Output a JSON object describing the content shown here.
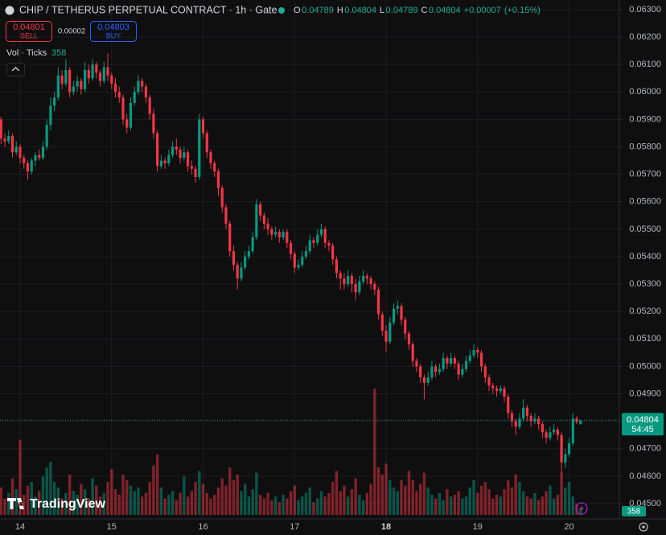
{
  "chart_data": {
    "type": "candlestick",
    "title": "CHIP / TETHERUS PERPETUAL CONTRACT · 1h · Gate",
    "ohlc_letters": [
      "O",
      "H",
      "L",
      "C"
    ],
    "change": "+0.00007",
    "change_pct": "(+0.15%)",
    "sell_price": "0.04801",
    "sell_label": "SELL",
    "spread": "0.00002",
    "buy_price": "0.04803",
    "buy_label": "BUY",
    "volume_title": "Vol · Ticks",
    "countdown": "54:45",
    "brand": "TradingView",
    "up_color": "#089981",
    "down_color": "#f23645",
    "grid": true,
    "ylim": [
      0.04459,
      0.06335
    ],
    "yticks": [
      {
        "value": 0.045,
        "label": "0.04500"
      },
      {
        "value": 0.046,
        "label": "0.04600"
      },
      {
        "value": 0.047,
        "label": "0.04700"
      },
      {
        "value": 0.048,
        "label": "0.04800"
      },
      {
        "value": 0.049,
        "label": "0.04900"
      },
      {
        "value": 0.05,
        "label": "0.05000"
      },
      {
        "value": 0.051,
        "label": "0.05100"
      },
      {
        "value": 0.052,
        "label": "0.05200"
      },
      {
        "value": 0.053,
        "label": "0.05300"
      },
      {
        "value": 0.054,
        "label": "0.05400"
      },
      {
        "value": 0.055,
        "label": "0.05500"
      },
      {
        "value": 0.056,
        "label": "0.05600"
      },
      {
        "value": 0.057,
        "label": "0.05700"
      },
      {
        "value": 0.058,
        "label": "0.05800"
      },
      {
        "value": 0.059,
        "label": "0.05900"
      },
      {
        "value": 0.06,
        "label": "0.06000"
      },
      {
        "value": 0.061,
        "label": "0.06100"
      },
      {
        "value": 0.062,
        "label": "0.06200"
      },
      {
        "value": 0.063,
        "label": "0.06300"
      }
    ],
    "categories": [
      null,
      null,
      null,
      null,
      null,
      "14",
      null,
      null,
      null,
      null,
      null,
      null,
      null,
      null,
      null,
      null,
      null,
      null,
      null,
      null,
      null,
      null,
      null,
      null,
      null,
      null,
      null,
      null,
      null,
      "15",
      null,
      null,
      null,
      null,
      null,
      null,
      null,
      null,
      null,
      null,
      null,
      null,
      null,
      null,
      null,
      null,
      null,
      null,
      null,
      null,
      null,
      null,
      null,
      "16",
      null,
      null,
      null,
      null,
      null,
      null,
      null,
      null,
      null,
      null,
      null,
      null,
      null,
      null,
      null,
      null,
      null,
      null,
      null,
      null,
      null,
      null,
      null,
      "17",
      null,
      null,
      null,
      null,
      null,
      null,
      null,
      null,
      null,
      null,
      null,
      null,
      null,
      null,
      null,
      null,
      null,
      null,
      null,
      null,
      null,
      null,
      null,
      "18",
      null,
      null,
      null,
      null,
      null,
      null,
      null,
      null,
      null,
      null,
      null,
      null,
      null,
      null,
      null,
      null,
      null,
      null,
      null,
      null,
      null,
      null,
      null,
      "19",
      null,
      null,
      null,
      null,
      null,
      null,
      null,
      null,
      null,
      null,
      null,
      null,
      null,
      null,
      null,
      null,
      null,
      null,
      null,
      null,
      null,
      null,
      null,
      "20",
      null,
      null,
      null
    ],
    "candles": [
      [
        0.059,
        0.0591,
        0.0581,
        0.0583
      ],
      [
        0.0583,
        0.0585,
        0.058,
        0.0582
      ],
      [
        0.0582,
        0.0586,
        0.0581,
        0.0584
      ],
      [
        0.0584,
        0.0585,
        0.0576,
        0.0578
      ],
      [
        0.0578,
        0.0582,
        0.0577,
        0.058
      ],
      [
        0.058,
        0.0581,
        0.0574,
        0.0576
      ],
      [
        0.0576,
        0.0577,
        0.0572,
        0.0574
      ],
      [
        0.0574,
        0.0575,
        0.0568,
        0.0571
      ],
      [
        0.0571,
        0.0576,
        0.057,
        0.0575
      ],
      [
        0.0575,
        0.0578,
        0.0573,
        0.0577
      ],
      [
        0.0577,
        0.0579,
        0.0575,
        0.0576
      ],
      [
        0.0576,
        0.0582,
        0.0575,
        0.058
      ],
      [
        0.058,
        0.059,
        0.0579,
        0.0588
      ],
      [
        0.0588,
        0.0598,
        0.0586,
        0.0595
      ],
      [
        0.0595,
        0.06,
        0.0593,
        0.0598
      ],
      [
        0.0598,
        0.0609,
        0.0597,
        0.0606
      ],
      [
        0.0606,
        0.0608,
        0.0601,
        0.0603
      ],
      [
        0.0603,
        0.0612,
        0.0602,
        0.0608
      ],
      [
        0.0608,
        0.0609,
        0.0598,
        0.06
      ],
      [
        0.06,
        0.0604,
        0.0599,
        0.0602
      ],
      [
        0.0602,
        0.0606,
        0.06,
        0.0604
      ],
      [
        0.0604,
        0.0605,
        0.0599,
        0.0601
      ],
      [
        0.0601,
        0.0611,
        0.06,
        0.0608
      ],
      [
        0.0608,
        0.061,
        0.0603,
        0.0605
      ],
      [
        0.0605,
        0.0612,
        0.0604,
        0.061
      ],
      [
        0.061,
        0.0611,
        0.0605,
        0.0607
      ],
      [
        0.0607,
        0.0608,
        0.0602,
        0.0604
      ],
      [
        0.0604,
        0.0611,
        0.0603,
        0.0609
      ],
      [
        0.0609,
        0.0614,
        0.0604,
        0.0606
      ],
      [
        0.0606,
        0.0607,
        0.0601,
        0.0603
      ],
      [
        0.0603,
        0.0605,
        0.0598,
        0.06
      ],
      [
        0.06,
        0.0602,
        0.0596,
        0.0598
      ],
      [
        0.0598,
        0.0599,
        0.0588,
        0.059
      ],
      [
        0.059,
        0.0592,
        0.0585,
        0.0587
      ],
      [
        0.0587,
        0.0598,
        0.0586,
        0.0596
      ],
      [
        0.0596,
        0.0602,
        0.0595,
        0.06
      ],
      [
        0.06,
        0.0606,
        0.0599,
        0.0604
      ],
      [
        0.0604,
        0.0605,
        0.06,
        0.0602
      ],
      [
        0.0602,
        0.0603,
        0.0596,
        0.0598
      ],
      [
        0.0598,
        0.0599,
        0.059,
        0.0592
      ],
      [
        0.0592,
        0.0594,
        0.0583,
        0.0585
      ],
      [
        0.0585,
        0.0586,
        0.0571,
        0.0573
      ],
      [
        0.0573,
        0.0577,
        0.0572,
        0.0575
      ],
      [
        0.0575,
        0.0576,
        0.0572,
        0.0574
      ],
      [
        0.0574,
        0.0579,
        0.0573,
        0.0577
      ],
      [
        0.0577,
        0.0582,
        0.0576,
        0.058
      ],
      [
        0.058,
        0.0583,
        0.0577,
        0.0579
      ],
      [
        0.0579,
        0.058,
        0.0574,
        0.0576
      ],
      [
        0.0576,
        0.058,
        0.0575,
        0.0578
      ],
      [
        0.0578,
        0.0579,
        0.0571,
        0.0573
      ],
      [
        0.0573,
        0.0575,
        0.057,
        0.0572
      ],
      [
        0.0572,
        0.0573,
        0.0567,
        0.0569
      ],
      [
        0.0569,
        0.0592,
        0.0568,
        0.059
      ],
      [
        0.059,
        0.0591,
        0.0583,
        0.0585
      ],
      [
        0.0585,
        0.0586,
        0.0576,
        0.0578
      ],
      [
        0.0578,
        0.0579,
        0.0572,
        0.0574
      ],
      [
        0.0574,
        0.0575,
        0.0569,
        0.0571
      ],
      [
        0.0571,
        0.0572,
        0.0562,
        0.0565
      ],
      [
        0.0565,
        0.0566,
        0.0556,
        0.0558
      ],
      [
        0.0558,
        0.0559,
        0.055,
        0.0552
      ],
      [
        0.0552,
        0.0553,
        0.054,
        0.0542
      ],
      [
        0.0542,
        0.0544,
        0.0535,
        0.0537
      ],
      [
        0.0537,
        0.0538,
        0.0528,
        0.0532
      ],
      [
        0.0532,
        0.0538,
        0.0531,
        0.0536
      ],
      [
        0.0536,
        0.0542,
        0.0535,
        0.054
      ],
      [
        0.054,
        0.0544,
        0.0539,
        0.0542
      ],
      [
        0.0542,
        0.0549,
        0.0541,
        0.0547
      ],
      [
        0.0547,
        0.0561,
        0.0546,
        0.0559
      ],
      [
        0.0559,
        0.056,
        0.0553,
        0.0555
      ],
      [
        0.0555,
        0.0556,
        0.055,
        0.0552
      ],
      [
        0.0552,
        0.0554,
        0.0548,
        0.055
      ],
      [
        0.055,
        0.0551,
        0.0546,
        0.0548
      ],
      [
        0.0548,
        0.0551,
        0.0547,
        0.0549
      ],
      [
        0.0549,
        0.055,
        0.0545,
        0.0547
      ],
      [
        0.0547,
        0.055,
        0.0546,
        0.0549
      ],
      [
        0.0549,
        0.055,
        0.0543,
        0.0545
      ],
      [
        0.0545,
        0.0546,
        0.0539,
        0.0541
      ],
      [
        0.0541,
        0.0542,
        0.0534,
        0.0536
      ],
      [
        0.0536,
        0.0539,
        0.0535,
        0.0537
      ],
      [
        0.0537,
        0.0542,
        0.0536,
        0.054
      ],
      [
        0.054,
        0.0544,
        0.0539,
        0.0542
      ],
      [
        0.0542,
        0.0548,
        0.0541,
        0.0546
      ],
      [
        0.0546,
        0.0547,
        0.0543,
        0.0545
      ],
      [
        0.0545,
        0.055,
        0.0544,
        0.0548
      ],
      [
        0.0548,
        0.0552,
        0.0547,
        0.055
      ],
      [
        0.055,
        0.0551,
        0.0543,
        0.0545
      ],
      [
        0.0545,
        0.0546,
        0.0542,
        0.0544
      ],
      [
        0.0544,
        0.0545,
        0.0537,
        0.0539
      ],
      [
        0.0539,
        0.054,
        0.0532,
        0.0534
      ],
      [
        0.0534,
        0.0535,
        0.0528,
        0.0532
      ],
      [
        0.0532,
        0.0534,
        0.0528,
        0.053
      ],
      [
        0.053,
        0.0535,
        0.0529,
        0.0533
      ],
      [
        0.0533,
        0.0534,
        0.0527,
        0.053
      ],
      [
        0.053,
        0.0532,
        0.0524,
        0.0527
      ],
      [
        0.0527,
        0.0533,
        0.0526,
        0.0531
      ],
      [
        0.0531,
        0.0535,
        0.053,
        0.0533
      ],
      [
        0.0533,
        0.0534,
        0.053,
        0.0532
      ],
      [
        0.0532,
        0.0533,
        0.0528,
        0.053
      ],
      [
        0.053,
        0.0531,
        0.0526,
        0.0528
      ],
      [
        0.0528,
        0.0529,
        0.0517,
        0.0519
      ],
      [
        0.0519,
        0.052,
        0.0511,
        0.0513
      ],
      [
        0.0513,
        0.0515,
        0.0505,
        0.0509
      ],
      [
        0.0509,
        0.0518,
        0.0508,
        0.0516
      ],
      [
        0.0516,
        0.0523,
        0.0515,
        0.0521
      ],
      [
        0.0521,
        0.0524,
        0.0519,
        0.0522
      ],
      [
        0.0522,
        0.0523,
        0.0515,
        0.0517
      ],
      [
        0.0517,
        0.0518,
        0.051,
        0.0512
      ],
      [
        0.0512,
        0.0513,
        0.0506,
        0.0508
      ],
      [
        0.0508,
        0.0509,
        0.05,
        0.0502
      ],
      [
        0.0502,
        0.0503,
        0.0498,
        0.05
      ],
      [
        0.05,
        0.0501,
        0.0494,
        0.0496
      ],
      [
        0.0496,
        0.0497,
        0.0488,
        0.0494
      ],
      [
        0.0494,
        0.0498,
        0.0493,
        0.0496
      ],
      [
        0.0496,
        0.0502,
        0.0495,
        0.05
      ],
      [
        0.05,
        0.0501,
        0.0496,
        0.0498
      ],
      [
        0.0498,
        0.0501,
        0.0497,
        0.0499
      ],
      [
        0.0499,
        0.0505,
        0.0498,
        0.0503
      ],
      [
        0.0503,
        0.0504,
        0.0499,
        0.0501
      ],
      [
        0.0501,
        0.0505,
        0.05,
        0.0503
      ],
      [
        0.0503,
        0.0504,
        0.0499,
        0.0501
      ],
      [
        0.0501,
        0.0502,
        0.0495,
        0.0497
      ],
      [
        0.0497,
        0.0501,
        0.0496,
        0.0499
      ],
      [
        0.0499,
        0.0504,
        0.0498,
        0.0502
      ],
      [
        0.0502,
        0.0506,
        0.0501,
        0.0504
      ],
      [
        0.0504,
        0.0508,
        0.0503,
        0.0506
      ],
      [
        0.0506,
        0.0507,
        0.0503,
        0.0505
      ],
      [
        0.0505,
        0.0506,
        0.0498,
        0.05
      ],
      [
        0.05,
        0.0501,
        0.0494,
        0.0496
      ],
      [
        0.0496,
        0.0497,
        0.0491,
        0.0493
      ],
      [
        0.0493,
        0.0494,
        0.049,
        0.0492
      ],
      [
        0.0492,
        0.0493,
        0.0489,
        0.0491
      ],
      [
        0.0491,
        0.0493,
        0.049,
        0.0492
      ],
      [
        0.0492,
        0.0493,
        0.0487,
        0.0489
      ],
      [
        0.0489,
        0.049,
        0.0481,
        0.0483
      ],
      [
        0.0483,
        0.0484,
        0.0478,
        0.048
      ],
      [
        0.048,
        0.0481,
        0.0475,
        0.0478
      ],
      [
        0.0478,
        0.0483,
        0.0477,
        0.0481
      ],
      [
        0.0481,
        0.0488,
        0.048,
        0.0485
      ],
      [
        0.0485,
        0.0486,
        0.048,
        0.0482
      ],
      [
        0.0482,
        0.0483,
        0.0478,
        0.048
      ],
      [
        0.048,
        0.0483,
        0.0479,
        0.0481
      ],
      [
        0.0481,
        0.0482,
        0.0477,
        0.0479
      ],
      [
        0.0479,
        0.048,
        0.0474,
        0.0476
      ],
      [
        0.0476,
        0.0477,
        0.0472,
        0.0474
      ],
      [
        0.0474,
        0.0478,
        0.0473,
        0.0476
      ],
      [
        0.0476,
        0.0479,
        0.0475,
        0.0477
      ],
      [
        0.0477,
        0.0478,
        0.0473,
        0.0475
      ],
      [
        0.0475,
        0.0476,
        0.0461,
        0.0465
      ],
      [
        0.0465,
        0.047,
        0.0463,
        0.0468
      ],
      [
        0.0468,
        0.0474,
        0.0467,
        0.0472
      ],
      [
        0.0472,
        0.0483,
        0.0471,
        0.0481
      ],
      [
        0.0481,
        0.0482,
        0.0479,
        0.04797
      ],
      [
        0.04789,
        0.04804,
        0.04789,
        0.04804
      ]
    ],
    "volumes": [
      1500,
      900,
      1200,
      2000,
      1400,
      4100,
      1100,
      1600,
      1800,
      1000,
      1300,
      2100,
      2600,
      2900,
      1800,
      1500,
      900,
      1200,
      2200,
      1300,
      1100,
      1700,
      1400,
      900,
      2000,
      1600,
      1000,
      1200,
      1800,
      2500,
      1400,
      1100,
      2200,
      1900,
      1600,
      1300,
      1500,
      1000,
      1200,
      1800,
      2700,
      3300,
      1500,
      900,
      1100,
      1300,
      800,
      1200,
      2100,
      1000,
      1300,
      1800,
      2400,
      1700,
      1200,
      900,
      1100,
      1500,
      2000,
      1600,
      2600,
      1900,
      2200,
      1300,
      1700,
      1000,
      1400,
      2300,
      1100,
      900,
      1200,
      800,
      1000,
      700,
      1100,
      900,
      1300,
      1600,
      800,
      1000,
      1200,
      1500,
      700,
      900,
      1300,
      1000,
      1200,
      1800,
      2400,
      1300,
      1600,
      1000,
      1400,
      2000,
      1100,
      800,
      1200,
      1700,
      6900,
      2600,
      2200,
      2800,
      1900,
      1500,
      1300,
      1900,
      1600,
      2400,
      1900,
      1300,
      1700,
      2300,
      1500,
      1100,
      900,
      1200,
      800,
      1400,
      1000,
      1100,
      1300,
      900,
      1000,
      1500,
      1900,
      1200,
      1600,
      1800,
      1400,
      900,
      1100,
      1000,
      1400,
      1900,
      1500,
      2200,
      1800,
      1300,
      1000,
      900,
      1200,
      800,
      1000,
      1300,
      1600,
      900,
      1100,
      2300,
      1500,
      1800,
      1000,
      600,
      358
    ]
  }
}
